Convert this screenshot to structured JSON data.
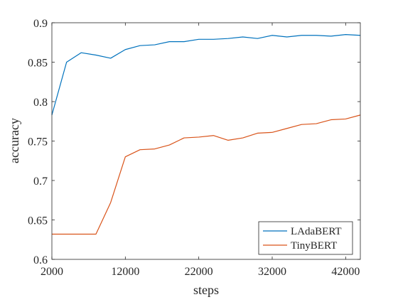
{
  "chart_data": {
    "type": "line",
    "title": "",
    "xlabel": "steps",
    "ylabel": "accuracy",
    "xlim": [
      2000,
      44000
    ],
    "ylim": [
      0.6,
      0.9
    ],
    "xticks": [
      2000,
      12000,
      22000,
      32000,
      42000
    ],
    "xtick_labels": [
      "2000",
      "12000",
      "22000",
      "32000",
      "42000"
    ],
    "yticks": [
      0.6,
      0.65,
      0.7,
      0.75,
      0.8,
      0.85,
      0.9
    ],
    "ytick_labels": [
      "0.6",
      "0.65",
      "0.7",
      "0.75",
      "0.8",
      "0.85",
      "0.9"
    ],
    "grid": false,
    "legend_position": "bottom-right",
    "x": [
      2000,
      4000,
      6000,
      8000,
      10000,
      12000,
      14000,
      16000,
      18000,
      20000,
      22000,
      24000,
      26000,
      28000,
      30000,
      32000,
      34000,
      36000,
      38000,
      40000,
      42000,
      44000
    ],
    "series": [
      {
        "name": "LAdaBERT",
        "color": "#0072BD",
        "values": [
          0.783,
          0.85,
          0.862,
          0.859,
          0.855,
          0.866,
          0.871,
          0.872,
          0.876,
          0.876,
          0.879,
          0.879,
          0.88,
          0.882,
          0.88,
          0.884,
          0.882,
          0.884,
          0.884,
          0.883,
          0.885,
          0.884
        ]
      },
      {
        "name": "TinyBERT",
        "color": "#D95319",
        "values": [
          0.632,
          0.632,
          0.632,
          0.632,
          0.672,
          0.73,
          0.739,
          0.74,
          0.745,
          0.754,
          0.755,
          0.757,
          0.751,
          0.754,
          0.76,
          0.761,
          0.766,
          0.771,
          0.772,
          0.777,
          0.778,
          0.783
        ]
      }
    ]
  }
}
